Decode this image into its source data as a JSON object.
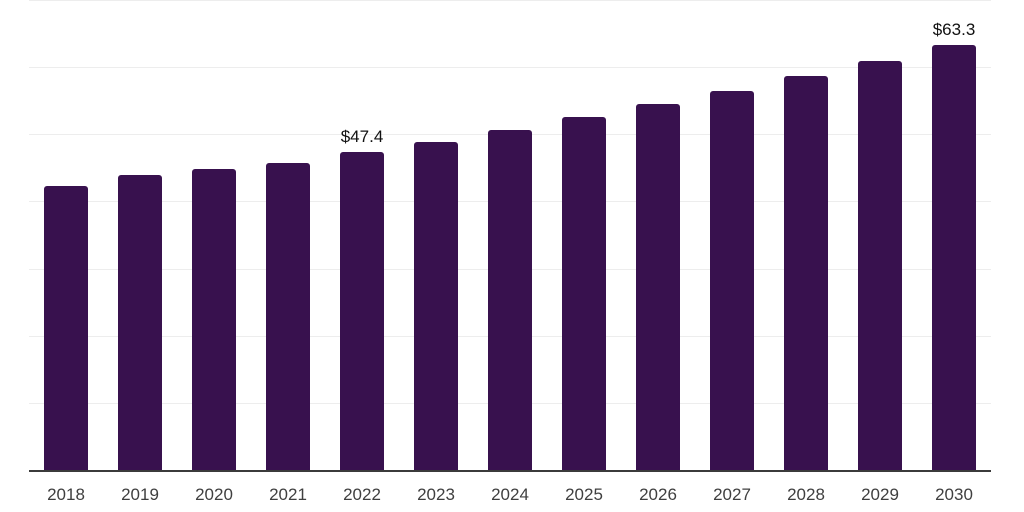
{
  "chart_data": {
    "type": "bar",
    "title": "",
    "categories": [
      "2018",
      "2019",
      "2020",
      "2021",
      "2022",
      "2023",
      "2024",
      "2025",
      "2026",
      "2027",
      "2028",
      "2029",
      "2030"
    ],
    "values": [
      42.3,
      44.0,
      44.8,
      45.7,
      47.4,
      48.9,
      50.6,
      52.6,
      54.5,
      56.5,
      58.7,
      60.9,
      63.3
    ],
    "value_labels": [
      {
        "category": "2022",
        "text": "$47.4"
      },
      {
        "category": "2030",
        "text": "$63.3"
      }
    ],
    "xlabel": "",
    "ylabel": "",
    "ylim": [
      0,
      70
    ],
    "grid": true,
    "gridline_step": 10,
    "legend": "none"
  },
  "colors": {
    "background": "#ffffff",
    "bar": "#38114E",
    "axis_line": "#3b3b3b",
    "gridline": "#ededed",
    "tick_label": "#3f3f3f",
    "value_label": "#111111"
  }
}
